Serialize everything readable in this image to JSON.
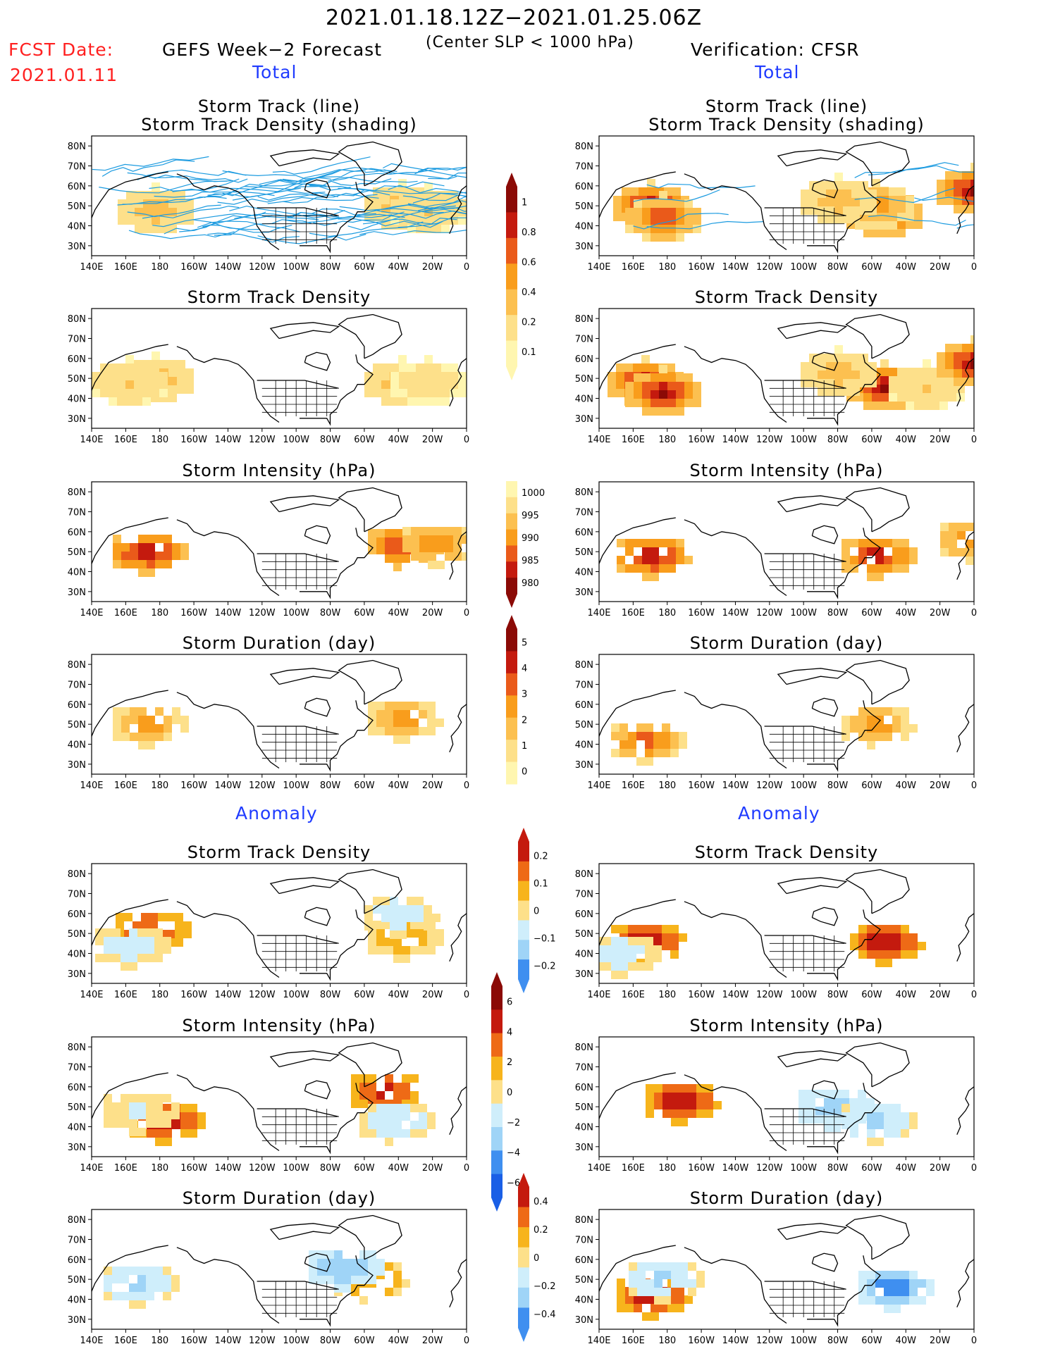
{
  "header": {
    "title": "2021.01.18.12Z−2021.01.25.06Z",
    "subtitle": "(Center SLP < 1000 hPa)",
    "fcst_label": "FCST Date:",
    "fcst_date": "2021.01.11",
    "left_heading": "GEFS Week−2 Forecast",
    "right_heading": "Verification: CFSR",
    "total_label": "Total",
    "anomaly_label": "Anomaly"
  },
  "colors": {
    "total_density": [
      "#fff6b0",
      "#fde08a",
      "#fcc050",
      "#f99d1c",
      "#ea5a1a",
      "#c41a0e",
      "#8b0a06"
    ],
    "intensity": [
      "#fff6b0",
      "#fde08a",
      "#fcc050",
      "#f99d1c",
      "#ea5a1a",
      "#c41a0e",
      "#8b0a06"
    ],
    "anomaly": [
      "#1a5fe6",
      "#3f8ff0",
      "#9fd4f7",
      "#cfeefb",
      "#fde08a",
      "#f7b41c",
      "#ee6a16",
      "#c41a0e",
      "#8b0a06"
    ],
    "track_line": "#1c9be0",
    "map_line": "#000000"
  },
  "colorbars": [
    {
      "id": "cb-total-density",
      "labels": [
        "1",
        "0.8",
        "0.6",
        "0.4",
        "0.2",
        "0.1"
      ]
    },
    {
      "id": "cb-total-intensity",
      "labels": [
        "1000",
        "995",
        "990",
        "985",
        "980"
      ]
    },
    {
      "id": "cb-total-duration",
      "labels": [
        "5",
        "4",
        "3",
        "2",
        "1",
        "0"
      ]
    },
    {
      "id": "cb-anom-density",
      "labels": [
        "0.2",
        "0.1",
        "0",
        "−0.1",
        "−0.2"
      ]
    },
    {
      "id": "cb-anom-intensity",
      "labels": [
        "6",
        "4",
        "2",
        "0",
        "−2",
        "−4",
        "−6"
      ]
    },
    {
      "id": "cb-anom-duration",
      "labels": [
        "0.4",
        "0.2",
        "0",
        "−0.2",
        "−0.4"
      ]
    }
  ],
  "axes": {
    "lon_ticks": [
      "140E",
      "160E",
      "180",
      "160W",
      "140W",
      "120W",
      "100W",
      "80W",
      "60W",
      "40W",
      "20W",
      "0"
    ],
    "lat_ticks": [
      "80N",
      "70N",
      "60N",
      "50N",
      "40N",
      "30N"
    ]
  },
  "chart_data": [
    {
      "id": "p-l1",
      "type": "heatmap",
      "column": "GEFS Week-2 Forecast",
      "title": [
        "Storm Track (line)",
        "Storm Track Density (shading)"
      ],
      "variable": "track lines + density",
      "xlim": [
        140,
        360
      ],
      "ylim": [
        25,
        85
      ],
      "hotspots": [
        {
          "lon": 175,
          "lat": 50,
          "value": 0.4
        },
        {
          "lon": 320,
          "lat": 52,
          "value": 0.4
        },
        {
          "lon": 335,
          "lat": 50,
          "value": 0.3
        }
      ]
    },
    {
      "id": "p-r1",
      "type": "heatmap",
      "column": "Verification: CFSR",
      "title": [
        "Storm Track (line)",
        "Storm Track Density (shading)"
      ],
      "variable": "track lines + density",
      "xlim": [
        140,
        360
      ],
      "ylim": [
        25,
        85
      ],
      "hotspots": [
        {
          "lon": 168,
          "lat": 52,
          "value": 1.0
        },
        {
          "lon": 175,
          "lat": 46,
          "value": 0.8
        },
        {
          "lon": 305,
          "lat": 48,
          "value": 1.0
        },
        {
          "lon": 300,
          "lat": 52,
          "value": 0.6
        },
        {
          "lon": 278,
          "lat": 55,
          "value": 0.4
        },
        {
          "lon": 358,
          "lat": 60,
          "value": 1.0
        }
      ]
    },
    {
      "id": "p-l2",
      "type": "heatmap",
      "column": "GEFS Week-2 Forecast",
      "title": [
        "Storm Track Density"
      ],
      "variable": "density",
      "xlim": [
        140,
        360
      ],
      "ylim": [
        25,
        85
      ],
      "hotspots": [
        {
          "lon": 175,
          "lat": 52,
          "value": 0.4
        },
        {
          "lon": 160,
          "lat": 50,
          "value": 0.3
        },
        {
          "lon": 320,
          "lat": 50,
          "value": 0.4
        },
        {
          "lon": 335,
          "lat": 50,
          "value": 0.2
        }
      ]
    },
    {
      "id": "p-r2",
      "type": "heatmap",
      "column": "Verification: CFSR",
      "title": [
        "Storm Track Density"
      ],
      "variable": "density",
      "xlim": [
        140,
        360
      ],
      "ylim": [
        25,
        85
      ],
      "hotspots": [
        {
          "lon": 165,
          "lat": 50,
          "value": 1.0
        },
        {
          "lon": 175,
          "lat": 45,
          "value": 1.0
        },
        {
          "lon": 305,
          "lat": 48,
          "value": 1.0
        },
        {
          "lon": 278,
          "lat": 55,
          "value": 0.4
        },
        {
          "lon": 330,
          "lat": 48,
          "value": 0.3
        },
        {
          "lon": 358,
          "lat": 60,
          "value": 1.0
        }
      ]
    },
    {
      "id": "p-l3",
      "type": "heatmap",
      "column": "GEFS Week-2 Forecast",
      "title": [
        "Storm Intensity (hPa)"
      ],
      "variable": "intensity",
      "xlim": [
        140,
        360
      ],
      "ylim": [
        25,
        85
      ],
      "hotspots": [
        {
          "lon": 170,
          "lat": 52,
          "value": 978
        },
        {
          "lon": 320,
          "lat": 55,
          "value": 982
        },
        {
          "lon": 340,
          "lat": 56,
          "value": 985
        }
      ]
    },
    {
      "id": "p-r3",
      "type": "heatmap",
      "column": "Verification: CFSR",
      "title": [
        "Storm Intensity (hPa)"
      ],
      "variable": "intensity",
      "xlim": [
        140,
        360
      ],
      "ylim": [
        25,
        85
      ],
      "hotspots": [
        {
          "lon": 168,
          "lat": 50,
          "value": 978
        },
        {
          "lon": 300,
          "lat": 50,
          "value": 980
        },
        {
          "lon": 358,
          "lat": 58,
          "value": 985
        }
      ]
    },
    {
      "id": "p-l4",
      "type": "heatmap",
      "column": "GEFS Week-2 Forecast",
      "title": [
        "Storm Duration (day)"
      ],
      "variable": "duration",
      "xlim": [
        140,
        360
      ],
      "ylim": [
        25,
        85
      ],
      "hotspots": [
        {
          "lon": 170,
          "lat": 52,
          "value": 3
        },
        {
          "lon": 320,
          "lat": 55,
          "value": 3
        }
      ]
    },
    {
      "id": "p-r4",
      "type": "heatmap",
      "column": "Verification: CFSR",
      "title": [
        "Storm Duration (day)"
      ],
      "variable": "duration",
      "xlim": [
        140,
        360
      ],
      "ylim": [
        25,
        85
      ],
      "hotspots": [
        {
          "lon": 165,
          "lat": 44,
          "value": 4
        },
        {
          "lon": 300,
          "lat": 52,
          "value": 3
        }
      ]
    },
    {
      "id": "p-l5",
      "type": "heatmap",
      "column": "GEFS Week-2 Forecast",
      "title": [
        "Storm Track Density"
      ],
      "variable": "anomaly density",
      "xlim": [
        140,
        360
      ],
      "ylim": [
        25,
        85
      ],
      "hotspots": [
        {
          "lon": 172,
          "lat": 54,
          "value": 0.15
        },
        {
          "lon": 160,
          "lat": 46,
          "value": -0.05
        },
        {
          "lon": 320,
          "lat": 50,
          "value": 0.05
        },
        {
          "lon": 318,
          "lat": 62,
          "value": -0.05
        }
      ]
    },
    {
      "id": "p-r5",
      "type": "heatmap",
      "column": "Verification: CFSR",
      "title": [
        "Storm Track Density"
      ],
      "variable": "anomaly density",
      "xlim": [
        140,
        360
      ],
      "ylim": [
        25,
        85
      ],
      "hotspots": [
        {
          "lon": 165,
          "lat": 48,
          "value": 0.2
        },
        {
          "lon": 305,
          "lat": 48,
          "value": 0.2
        },
        {
          "lon": 150,
          "lat": 42,
          "value": -0.05
        }
      ]
    },
    {
      "id": "p-l6",
      "type": "heatmap",
      "column": "GEFS Week-2 Forecast",
      "title": [
        "Storm Intensity (hPa)"
      ],
      "variable": "anomaly intensity",
      "xlim": [
        140,
        360
      ],
      "ylim": [
        25,
        85
      ],
      "hotspots": [
        {
          "lon": 180,
          "lat": 45,
          "value": 6
        },
        {
          "lon": 165,
          "lat": 50,
          "value": -1
        },
        {
          "lon": 310,
          "lat": 60,
          "value": 5
        },
        {
          "lon": 315,
          "lat": 45,
          "value": -2
        }
      ]
    },
    {
      "id": "p-r6",
      "type": "heatmap",
      "column": "Verification: CFSR",
      "title": [
        "Storm Intensity (hPa)"
      ],
      "variable": "anomaly intensity",
      "xlim": [
        140,
        360
      ],
      "ylim": [
        25,
        85
      ],
      "hotspots": [
        {
          "lon": 185,
          "lat": 55,
          "value": 6
        },
        {
          "lon": 275,
          "lat": 52,
          "value": -4
        },
        {
          "lon": 300,
          "lat": 45,
          "value": -3
        }
      ]
    },
    {
      "id": "p-l7",
      "type": "heatmap",
      "column": "GEFS Week-2 Forecast",
      "title": [
        "Storm Duration (day)"
      ],
      "variable": "anomaly duration",
      "xlim": [
        140,
        360
      ],
      "ylim": [
        25,
        85
      ],
      "hotspots": [
        {
          "lon": 165,
          "lat": 50,
          "value": -0.2
        },
        {
          "lon": 300,
          "lat": 52,
          "value": 0.15
        },
        {
          "lon": 285,
          "lat": 58,
          "value": -0.3
        }
      ]
    },
    {
      "id": "p-r7",
      "type": "heatmap",
      "column": "Verification: CFSR",
      "title": [
        "Storm Duration (day)"
      ],
      "variable": "anomaly duration",
      "xlim": [
        140,
        360
      ],
      "ylim": [
        25,
        85
      ],
      "hotspots": [
        {
          "lon": 168,
          "lat": 44,
          "value": 0.4
        },
        {
          "lon": 310,
          "lat": 48,
          "value": -0.4
        },
        {
          "lon": 175,
          "lat": 52,
          "value": -0.2
        }
      ]
    }
  ]
}
